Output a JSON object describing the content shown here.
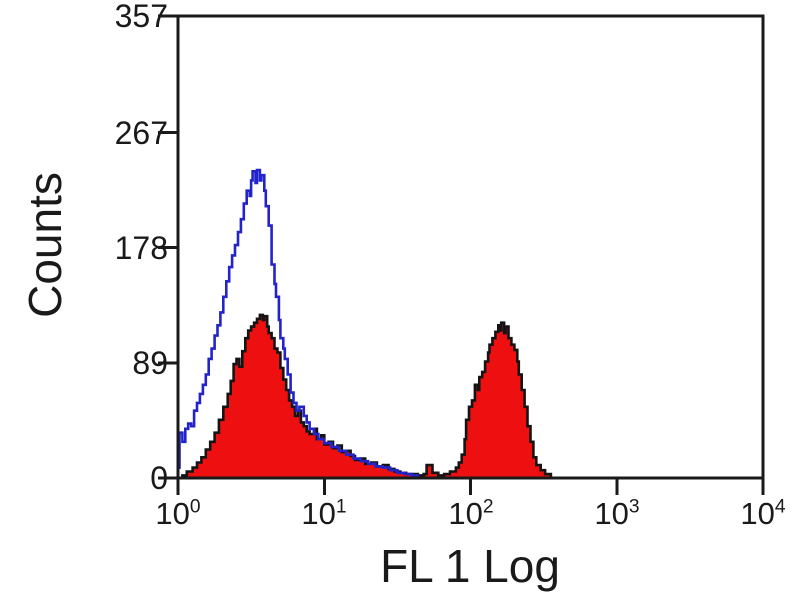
{
  "figure": {
    "background": "#ffffff",
    "axis_color": "#1a1a1a",
    "text_color": "#1a1a1a"
  },
  "chart_data": {
    "type": "area",
    "subtype": "flow-cytometry-histogram-overlay",
    "title": "",
    "xlabel": "FL 1 Log",
    "ylabel": "Counts",
    "x_scale": "log10",
    "xlim_log": [
      0,
      4
    ],
    "ylim": [
      0,
      357
    ],
    "grid": "off",
    "legend": "none",
    "y_ticks": [
      0,
      89,
      178,
      267,
      357
    ],
    "x_ticks": [
      {
        "base": "10",
        "exp": "0",
        "log": 0
      },
      {
        "base": "10",
        "exp": "1",
        "log": 1
      },
      {
        "base": "10",
        "exp": "2",
        "log": 2
      },
      {
        "base": "10",
        "exp": "3",
        "log": 3
      },
      {
        "base": "10",
        "exp": "4",
        "log": 4
      }
    ],
    "series": [
      {
        "name": "filled-histogram-stained",
        "style": "filled",
        "line_color": "#141414",
        "fill_color": "#ee1010",
        "points_log_counts": [
          [
            0.0,
            0
          ],
          [
            0.03,
            2
          ],
          [
            0.06,
            5
          ],
          [
            0.1,
            8
          ],
          [
            0.13,
            12
          ],
          [
            0.16,
            16
          ],
          [
            0.19,
            22
          ],
          [
            0.22,
            28
          ],
          [
            0.25,
            35
          ],
          [
            0.28,
            45
          ],
          [
            0.31,
            55
          ],
          [
            0.34,
            65
          ],
          [
            0.36,
            75
          ],
          [
            0.38,
            88
          ],
          [
            0.4,
            92
          ],
          [
            0.42,
            86
          ],
          [
            0.44,
            98
          ],
          [
            0.46,
            108
          ],
          [
            0.48,
            114
          ],
          [
            0.5,
            117
          ],
          [
            0.52,
            120
          ],
          [
            0.54,
            123
          ],
          [
            0.56,
            126
          ],
          [
            0.58,
            122
          ],
          [
            0.59,
            125
          ],
          [
            0.61,
            117
          ],
          [
            0.62,
            112
          ],
          [
            0.64,
            108
          ],
          [
            0.66,
            100
          ],
          [
            0.68,
            97
          ],
          [
            0.7,
            85
          ],
          [
            0.72,
            76
          ],
          [
            0.74,
            68
          ],
          [
            0.76,
            60
          ],
          [
            0.78,
            55
          ],
          [
            0.8,
            48
          ],
          [
            0.82,
            52
          ],
          [
            0.84,
            43
          ],
          [
            0.86,
            40
          ],
          [
            0.88,
            36
          ],
          [
            0.9,
            34
          ],
          [
            0.93,
            38
          ],
          [
            0.95,
            30
          ],
          [
            0.98,
            33
          ],
          [
            1.0,
            26
          ],
          [
            1.03,
            28
          ],
          [
            1.06,
            23
          ],
          [
            1.09,
            25
          ],
          [
            1.12,
            20
          ],
          [
            1.15,
            21
          ],
          [
            1.18,
            17
          ],
          [
            1.21,
            14
          ],
          [
            1.25,
            15
          ],
          [
            1.28,
            11
          ],
          [
            1.32,
            12
          ],
          [
            1.36,
            9
          ],
          [
            1.4,
            10
          ],
          [
            1.44,
            7
          ],
          [
            1.48,
            5
          ],
          [
            1.52,
            4
          ],
          [
            1.56,
            3
          ],
          [
            1.6,
            3
          ],
          [
            1.64,
            2
          ],
          [
            1.68,
            3
          ],
          [
            1.7,
            10
          ],
          [
            1.74,
            4
          ],
          [
            1.78,
            2
          ],
          [
            1.82,
            3
          ],
          [
            1.86,
            5
          ],
          [
            1.9,
            8
          ],
          [
            1.92,
            12
          ],
          [
            1.94,
            18
          ],
          [
            1.96,
            30
          ],
          [
            1.97,
            45
          ],
          [
            1.99,
            55
          ],
          [
            2.01,
            60
          ],
          [
            2.03,
            72
          ],
          [
            2.05,
            68
          ],
          [
            2.06,
            78
          ],
          [
            2.08,
            82
          ],
          [
            2.1,
            90
          ],
          [
            2.12,
            97
          ],
          [
            2.13,
            103
          ],
          [
            2.15,
            108
          ],
          [
            2.17,
            113
          ],
          [
            2.19,
            118
          ],
          [
            2.2,
            114
          ],
          [
            2.21,
            120
          ],
          [
            2.23,
            112
          ],
          [
            2.24,
            117
          ],
          [
            2.26,
            108
          ],
          [
            2.28,
            103
          ],
          [
            2.3,
            99
          ],
          [
            2.32,
            90
          ],
          [
            2.33,
            80
          ],
          [
            2.35,
            68
          ],
          [
            2.37,
            55
          ],
          [
            2.39,
            40
          ],
          [
            2.41,
            28
          ],
          [
            2.43,
            16
          ],
          [
            2.45,
            10
          ],
          [
            2.48,
            6
          ],
          [
            2.51,
            3
          ],
          [
            2.55,
            0
          ]
        ]
      },
      {
        "name": "open-histogram-control",
        "style": "open",
        "line_color": "#2323cc",
        "fill_color": "none",
        "points_log_counts": [
          [
            0.0,
            8
          ],
          [
            0.01,
            35
          ],
          [
            0.03,
            28
          ],
          [
            0.05,
            38
          ],
          [
            0.07,
            42
          ],
          [
            0.09,
            40
          ],
          [
            0.11,
            52
          ],
          [
            0.13,
            58
          ],
          [
            0.15,
            65
          ],
          [
            0.17,
            72
          ],
          [
            0.19,
            80
          ],
          [
            0.21,
            92
          ],
          [
            0.23,
            100
          ],
          [
            0.25,
            110
          ],
          [
            0.27,
            118
          ],
          [
            0.29,
            128
          ],
          [
            0.31,
            140
          ],
          [
            0.33,
            152
          ],
          [
            0.35,
            163
          ],
          [
            0.37,
            172
          ],
          [
            0.39,
            180
          ],
          [
            0.41,
            190
          ],
          [
            0.43,
            200
          ],
          [
            0.45,
            212
          ],
          [
            0.47,
            222
          ],
          [
            0.49,
            218
          ],
          [
            0.5,
            230
          ],
          [
            0.51,
            237
          ],
          [
            0.53,
            228
          ],
          [
            0.54,
            238
          ],
          [
            0.56,
            230
          ],
          [
            0.57,
            234
          ],
          [
            0.59,
            222
          ],
          [
            0.6,
            210
          ],
          [
            0.62,
            195
          ],
          [
            0.64,
            165
          ],
          [
            0.66,
            150
          ],
          [
            0.67,
            140
          ],
          [
            0.69,
            122
          ],
          [
            0.7,
            108
          ],
          [
            0.72,
            100
          ],
          [
            0.73,
            92
          ],
          [
            0.75,
            80
          ],
          [
            0.77,
            66
          ],
          [
            0.79,
            58
          ],
          [
            0.81,
            52
          ],
          [
            0.83,
            55
          ],
          [
            0.86,
            48
          ],
          [
            0.88,
            43
          ],
          [
            0.9,
            38
          ],
          [
            0.93,
            34
          ],
          [
            0.96,
            30
          ],
          [
            1.0,
            27
          ],
          [
            1.05,
            24
          ],
          [
            1.1,
            21
          ],
          [
            1.15,
            18
          ],
          [
            1.2,
            15
          ],
          [
            1.25,
            13
          ],
          [
            1.3,
            11
          ],
          [
            1.35,
            9
          ],
          [
            1.4,
            8
          ],
          [
            1.45,
            6
          ],
          [
            1.5,
            4
          ],
          [
            1.55,
            3
          ],
          [
            1.6,
            2
          ],
          [
            1.64,
            0
          ]
        ]
      }
    ]
  }
}
